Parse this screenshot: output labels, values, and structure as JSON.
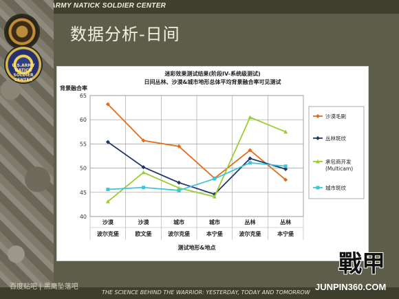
{
  "header": {
    "org_title": "US ARMY NATICK SOLDIER CENTER"
  },
  "logos": {
    "badge_text": "U.S.ARMY NATICK SOLDIER CENTER"
  },
  "slide": {
    "title": "数据分析-日间"
  },
  "chart_data": {
    "type": "line",
    "title": "迷彩效果测试结果(阶段IV-系统级测试)",
    "subtitle": "日间丛林、沙漠&城市地形总体平均背景融合率可见测试",
    "ylabel": "背景融合率",
    "xlabel": "测试地形&地点",
    "ylim": [
      40,
      65
    ],
    "yticks": [
      40,
      45,
      50,
      55,
      60,
      65
    ],
    "grid": true,
    "legend_position": "right",
    "categories": [
      {
        "top": "沙漠",
        "bottom": "波尔克堡"
      },
      {
        "top": "沙漠",
        "bottom": "欧文堡"
      },
      {
        "top": "城市",
        "bottom": "波尔克堡"
      },
      {
        "top": "城市",
        "bottom": "本宁堡"
      },
      {
        "top": "丛林",
        "bottom": "波尔克堡"
      },
      {
        "top": "丛林",
        "bottom": "本宁堡"
      }
    ],
    "series": [
      {
        "name": "沙漠毛刷",
        "color": "#e36c1a",
        "marker": "diamond",
        "values": [
          63.2,
          55.7,
          54.5,
          47.9,
          53.7,
          47.6
        ]
      },
      {
        "name": "丛林斑纹",
        "color": "#1f3864",
        "marker": "diamond",
        "values": [
          55.4,
          50.2,
          47.0,
          44.6,
          52.0,
          49.8
        ]
      },
      {
        "name": "承包商开发(Multicam)",
        "color": "#9acd32",
        "marker": "triangle",
        "values": [
          43.1,
          49.1,
          45.9,
          44.1,
          60.5,
          57.5
        ]
      },
      {
        "name": "城市斑纹",
        "color": "#3ec5db",
        "marker": "square",
        "values": [
          45.6,
          46.0,
          45.4,
          47.8,
          51.1,
          50.4
        ]
      }
    ]
  },
  "footer": {
    "tagline": "THE SCIENCE BEHIND THE WARRIOR: YESTERDAY, TODAY AND TOMORROW",
    "watermark": "百度贴吧 | 黑鹰坠落吧",
    "site": "JUNPIN360.COM",
    "brand": "戰甲"
  }
}
